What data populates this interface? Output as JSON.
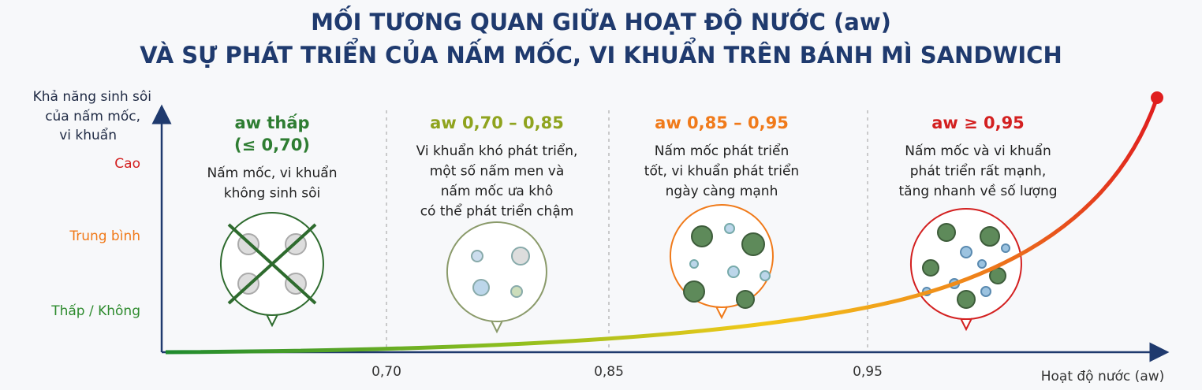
{
  "header": {
    "title": [
      "MỐI TƯƠNG QUAN GIỮA HOẠT ĐỘ NƯỚC (aw)",
      "VÀ SỰ PHÁT TRIỂN CỦA NẤM MỐC, VI KHUẨN TRÊN BÁNH MÌ SANDWICH"
    ]
  },
  "y_axis": {
    "label": [
      "Khả năng sinh sôi",
      "của nấm mốc,",
      "vi khuẩn"
    ],
    "levels": [
      "Cao",
      "Trung bình",
      "Thấp / Không"
    ]
  },
  "x_axis": {
    "label": "Hoạt độ nước (aw)",
    "ticks": [
      "0,70",
      "0,85",
      "0,95"
    ]
  },
  "zones": [
    {
      "heading": [
        "aw thấp",
        "(≤ 0,70)"
      ],
      "description": [
        "Nấm mốc, vi khuẩn",
        "không sinh sôi"
      ]
    },
    {
      "heading": [
        "aw 0,70 – 0,85"
      ],
      "description": [
        "Vi khuẩn khó phát triển,",
        "một số nấm men và",
        "nấm mốc ưa khô",
        "có thể phát triển chậm"
      ]
    },
    {
      "heading": [
        "aw 0,85 – 0,95"
      ],
      "description": [
        "Nấm mốc phát triển",
        "tốt, vi khuẩn phát triển",
        "ngày càng mạnh"
      ]
    },
    {
      "heading": [
        "aw ≥ 0,95"
      ],
      "description": [
        "Nấm mốc và vi khuẩn",
        "phát triển rất mạnh,",
        "tăng nhanh về số lượng"
      ]
    }
  ]
}
